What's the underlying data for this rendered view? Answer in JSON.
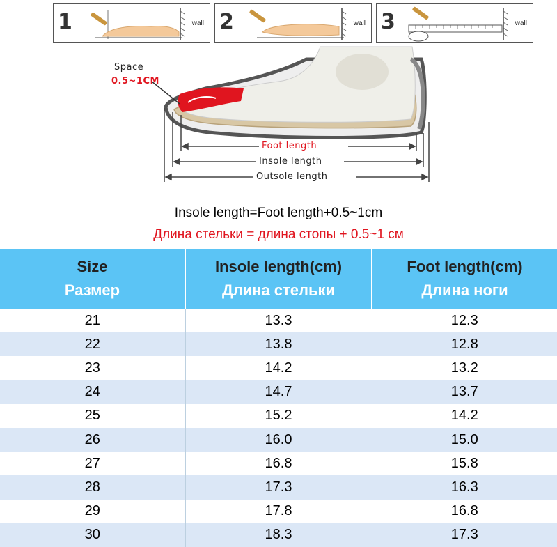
{
  "steps": [
    {
      "number": "1",
      "wall": "wall"
    },
    {
      "number": "2",
      "wall": "wall"
    },
    {
      "number": "3",
      "wall": "wall"
    }
  ],
  "diagram": {
    "space_label": "Space",
    "space_value": "0.5~1CM",
    "foot_length": "Foot length",
    "insole_length": "Insole length",
    "outsole_length": "Outsole length"
  },
  "formula": {
    "english": "Insole length=Foot length+0.5~1cm",
    "russian": "Длина стельки = длина стопы + 0.5~1 см"
  },
  "table": {
    "headers": [
      {
        "en": "Size",
        "ru": "Размер"
      },
      {
        "en": "Insole length(cm)",
        "ru": "Длина стельки"
      },
      {
        "en": "Foot length(cm)",
        "ru": "Длина ноги"
      }
    ],
    "rows": [
      [
        "21",
        "13.3",
        "12.3"
      ],
      [
        "22",
        "13.8",
        "12.8"
      ],
      [
        "23",
        "14.2",
        "13.2"
      ],
      [
        "24",
        "14.7",
        "13.7"
      ],
      [
        "25",
        "15.2",
        "14.2"
      ],
      [
        "26",
        "16.0",
        "15.0"
      ],
      [
        "27",
        "16.8",
        "15.8"
      ],
      [
        "28",
        "17.3",
        "16.3"
      ],
      [
        "29",
        "17.8",
        "16.8"
      ],
      [
        "30",
        "18.3",
        "17.3"
      ]
    ]
  },
  "colors": {
    "header_bg": "#5bc4f5",
    "alt_row_bg": "#dbe7f6",
    "red_text": "#e0151f"
  }
}
